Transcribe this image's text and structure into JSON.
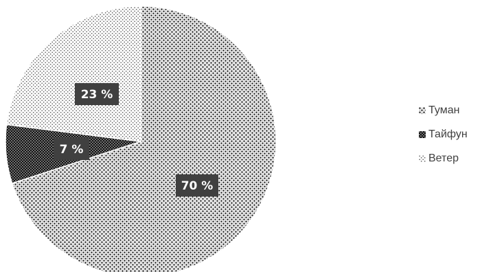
{
  "chart_data": {
    "type": "pie",
    "categories": [
      "Туман",
      "Тайфун",
      "Ветер"
    ],
    "values": [
      70,
      7,
      23
    ],
    "labels": [
      "70 %",
      "7 %",
      "23 %"
    ],
    "legend_position": "right",
    "patterns": [
      "dense-dots",
      "dark-dots",
      "sparse-dots"
    ]
  }
}
